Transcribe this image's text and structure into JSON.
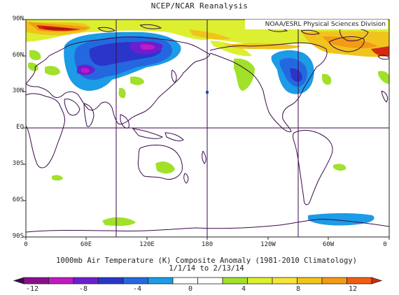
{
  "header": {
    "title": "NCEP/NCAR Reanalysis"
  },
  "credit": "NOAA/ESRL Physical Sciences Division",
  "lat_labels": [
    "90N",
    "60N",
    "30N",
    "EQ",
    "30S",
    "60S",
    "90S"
  ],
  "lon_labels": [
    "0",
    "60E",
    "120E",
    "180",
    "120W",
    "60W",
    "0"
  ],
  "caption": {
    "line1": "1000mb Air Temperature (K) Composite Anomaly (1981-2010 Climatology)",
    "line2": "1/1/14   to 2/13/14"
  },
  "colorbar": {
    "labels": [
      "-12",
      "-8",
      "-4",
      "0",
      "4",
      "8",
      "12"
    ],
    "colors": [
      "#3a0a4a",
      "#8b0f8b",
      "#c219c2",
      "#6a1fd1",
      "#2a35c9",
      "#2468e0",
      "#1c9be6",
      "#ffffff",
      "#ffffff",
      "#a1e12a",
      "#dcef30",
      "#f7e43a",
      "#f0c41c",
      "#f29b15",
      "#ef5c12",
      "#d42a12"
    ]
  },
  "colors": {
    "land_outline": "#3a0a4a",
    "grid": "#3a0a4a"
  }
}
